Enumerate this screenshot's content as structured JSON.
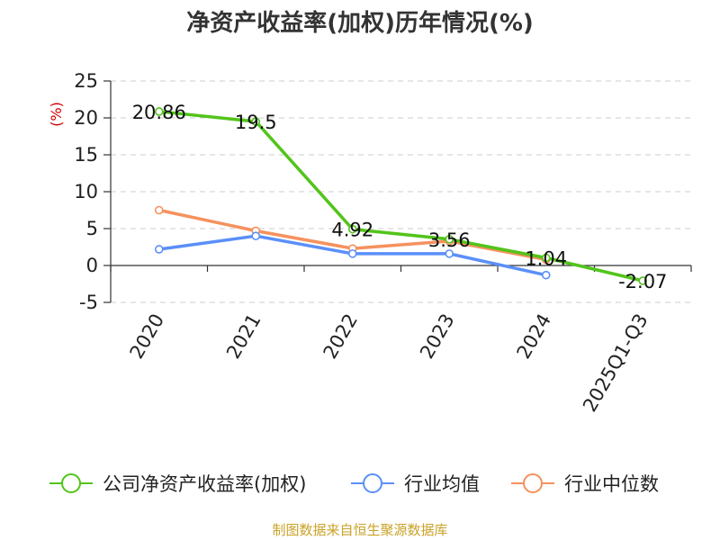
{
  "title": "净资产收益率(加权)历年情况(%)",
  "unit_label": "(%)",
  "source": "制图数据来自恒生聚源数据库",
  "colors": {
    "company": "#52c41a",
    "industry_avg": "#5b8ff9",
    "industry_median": "#f6915d",
    "axis": "#333333",
    "grid": "#cccccc"
  },
  "chart_data": {
    "type": "line",
    "categories": [
      "2020",
      "2021",
      "2022",
      "2023",
      "2024",
      "2025Q1-Q3"
    ],
    "ylim": [
      -5,
      25
    ],
    "yticks": [
      -5,
      0,
      5,
      10,
      15,
      20,
      25
    ],
    "grid": true,
    "legend_position": "bottom",
    "series": [
      {
        "key": "company",
        "name": "公司净资产收益率(加权)",
        "values": [
          20.86,
          19.5,
          4.92,
          3.56,
          1.04,
          -2.07
        ],
        "data_labels": [
          "20.86",
          "19.5",
          "4.92",
          "3.56",
          "1.04",
          "-2.07"
        ]
      },
      {
        "key": "industry_avg",
        "name": "行业均值",
        "values": [
          2.2,
          4.0,
          1.6,
          1.6,
          -1.3,
          null
        ]
      },
      {
        "key": "industry_median",
        "name": "行业中位数",
        "values": [
          7.5,
          4.7,
          2.3,
          3.3,
          0.8,
          null
        ]
      }
    ]
  }
}
